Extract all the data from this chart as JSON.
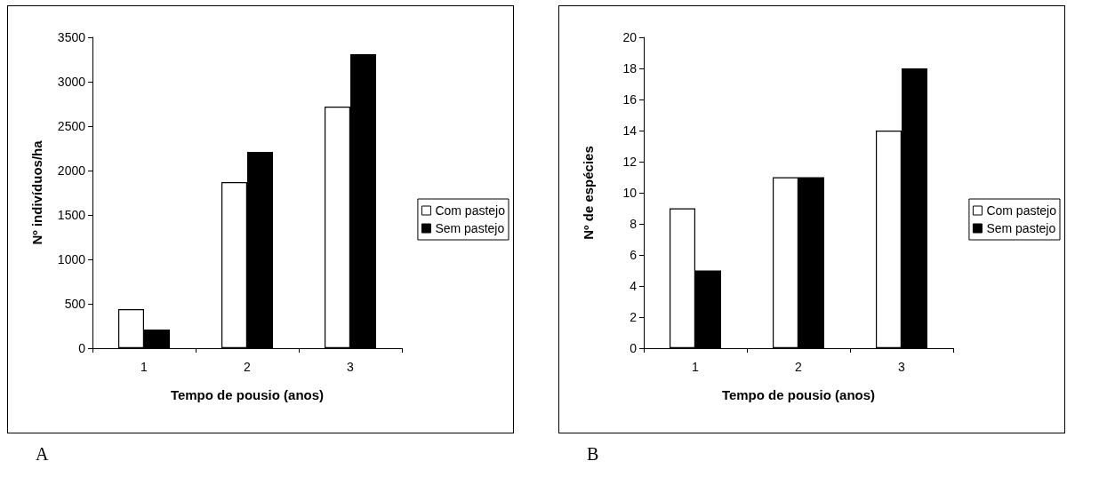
{
  "chart_data": [
    {
      "type": "bar",
      "xlabel": "Tempo de pousio (anos)",
      "ylabel": "Nº indivíduos/ha",
      "categories": [
        "1",
        "2",
        "3"
      ],
      "series": [
        {
          "name": "Com pastejo",
          "color": "#ffffff",
          "values": [
            440,
            1870,
            2720
          ]
        },
        {
          "name": "Sem pastejo",
          "color": "#000000",
          "values": [
            210,
            2210,
            3310
          ]
        }
      ],
      "ylim": [
        0,
        3500
      ],
      "yticks": [
        0,
        500,
        1000,
        1500,
        2000,
        2500,
        3000,
        3500
      ],
      "grid": false,
      "legend": "right",
      "annotations": [
        "A"
      ]
    },
    {
      "type": "bar",
      "xlabel": "Tempo de pousio (anos)",
      "ylabel": "Nº de espécies",
      "categories": [
        "1",
        "2",
        "3"
      ],
      "series": [
        {
          "name": "Com pastejo",
          "color": "#ffffff",
          "values": [
            9,
            11,
            14
          ]
        },
        {
          "name": "Sem pastejo",
          "color": "#000000",
          "values": [
            5,
            11,
            18
          ]
        }
      ],
      "ylim": [
        0,
        20
      ],
      "yticks": [
        0,
        2,
        4,
        6,
        8,
        10,
        12,
        14,
        16,
        18,
        20
      ],
      "grid": false,
      "legend": "right",
      "annotations": [
        "B"
      ]
    }
  ]
}
